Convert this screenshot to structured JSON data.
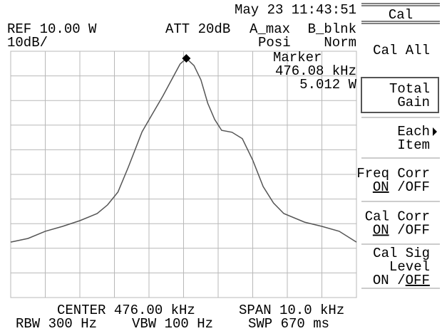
{
  "header": {
    "datetime": "May 23 11:43:51",
    "ref": "REF 10.00 W",
    "scale": "10dB/",
    "att": "ATT 20dB",
    "trace_a": "A_max",
    "trace_a_mode": "Posi",
    "trace_b": "B_blnk",
    "trace_b_mode": "Norm"
  },
  "marker": {
    "label": "Marker",
    "frequency": "476.08 kHz",
    "level": "5.012 W"
  },
  "menu": {
    "title": "Cal",
    "items": [
      {
        "lines": [
          "Cal All"
        ]
      },
      {
        "lines": [
          "Total",
          "Gain"
        ],
        "selected": true
      },
      {
        "lines": [
          "Each",
          "Item"
        ],
        "submenu": true
      },
      {
        "lines": [
          "Freq Corr"
        ],
        "on": "ON",
        "slash": "/",
        "off": "OFF",
        "active": "on"
      },
      {
        "lines": [
          "Cal Corr"
        ],
        "on": "ON",
        "slash": "/",
        "off": "OFF",
        "active": "on"
      },
      {
        "lines": [
          "Cal Sig",
          "Level"
        ],
        "on": "ON",
        "slash": "/",
        "off": "OFF",
        "active": "off"
      }
    ]
  },
  "footer": {
    "center": "CENTER 476.00 kHz",
    "span": "SPAN 10.0 kHz",
    "rbw": "RBW 300 Hz",
    "vbw": "VBW 100 Hz",
    "swp": "SWP 670 ms"
  },
  "trace": {
    "x": [
      471,
      471.5,
      472,
      472.5,
      473,
      473.5,
      473.8,
      474.1,
      474.4,
      474.8,
      475.1,
      475.4,
      475.7,
      475.9,
      476.08,
      476.3,
      476.5,
      476.7,
      476.9,
      477.1,
      477.4,
      477.7,
      478,
      478.3,
      478.6,
      478.9,
      479.5,
      480,
      480.5,
      481
    ],
    "values": [
      -77.5,
      -76,
      -73.1,
      -71.1,
      -68.8,
      -65.9,
      -62.4,
      -57.2,
      -47.1,
      -32.7,
      -25.4,
      -18.2,
      -10.4,
      -5.2,
      -2.9,
      -5.8,
      -11.6,
      -21.1,
      -27.7,
      -32.1,
      -32.9,
      -35.5,
      -44.2,
      -54.9,
      -61.6,
      -65.9,
      -69.4,
      -71.1,
      -73.1,
      -77.5
    ],
    "xlim": [
      471,
      481
    ],
    "ylim": [
      -100,
      0
    ]
  }
}
